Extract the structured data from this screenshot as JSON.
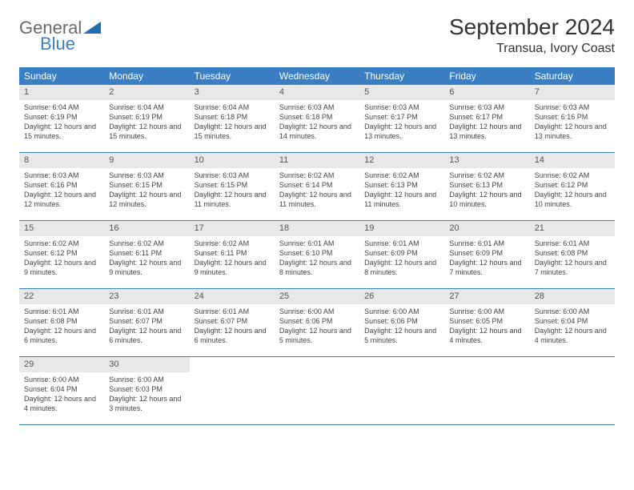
{
  "logo": {
    "text1": "General",
    "text2": "Blue",
    "accent_color": "#1f6fb2"
  },
  "header": {
    "title": "September 2024",
    "location": "Transua, Ivory Coast"
  },
  "style": {
    "header_bg": "#3a7fc4",
    "header_fg": "#ffffff",
    "daynum_bg": "#e8e8e8",
    "border_color": "#3a7fc4",
    "body_fontsize": 9,
    "title_fontsize": 28,
    "location_fontsize": 16
  },
  "day_names": [
    "Sunday",
    "Monday",
    "Tuesday",
    "Wednesday",
    "Thursday",
    "Friday",
    "Saturday"
  ],
  "weeks": [
    [
      {
        "n": "1",
        "sunrise": "6:04 AM",
        "sunset": "6:19 PM",
        "daylight": "12 hours and 15 minutes."
      },
      {
        "n": "2",
        "sunrise": "6:04 AM",
        "sunset": "6:19 PM",
        "daylight": "12 hours and 15 minutes."
      },
      {
        "n": "3",
        "sunrise": "6:04 AM",
        "sunset": "6:18 PM",
        "daylight": "12 hours and 15 minutes."
      },
      {
        "n": "4",
        "sunrise": "6:03 AM",
        "sunset": "6:18 PM",
        "daylight": "12 hours and 14 minutes."
      },
      {
        "n": "5",
        "sunrise": "6:03 AM",
        "sunset": "6:17 PM",
        "daylight": "12 hours and 13 minutes."
      },
      {
        "n": "6",
        "sunrise": "6:03 AM",
        "sunset": "6:17 PM",
        "daylight": "12 hours and 13 minutes."
      },
      {
        "n": "7",
        "sunrise": "6:03 AM",
        "sunset": "6:16 PM",
        "daylight": "12 hours and 13 minutes."
      }
    ],
    [
      {
        "n": "8",
        "sunrise": "6:03 AM",
        "sunset": "6:16 PM",
        "daylight": "12 hours and 12 minutes."
      },
      {
        "n": "9",
        "sunrise": "6:03 AM",
        "sunset": "6:15 PM",
        "daylight": "12 hours and 12 minutes."
      },
      {
        "n": "10",
        "sunrise": "6:03 AM",
        "sunset": "6:15 PM",
        "daylight": "12 hours and 11 minutes."
      },
      {
        "n": "11",
        "sunrise": "6:02 AM",
        "sunset": "6:14 PM",
        "daylight": "12 hours and 11 minutes."
      },
      {
        "n": "12",
        "sunrise": "6:02 AM",
        "sunset": "6:13 PM",
        "daylight": "12 hours and 11 minutes."
      },
      {
        "n": "13",
        "sunrise": "6:02 AM",
        "sunset": "6:13 PM",
        "daylight": "12 hours and 10 minutes."
      },
      {
        "n": "14",
        "sunrise": "6:02 AM",
        "sunset": "6:12 PM",
        "daylight": "12 hours and 10 minutes."
      }
    ],
    [
      {
        "n": "15",
        "sunrise": "6:02 AM",
        "sunset": "6:12 PM",
        "daylight": "12 hours and 9 minutes."
      },
      {
        "n": "16",
        "sunrise": "6:02 AM",
        "sunset": "6:11 PM",
        "daylight": "12 hours and 9 minutes."
      },
      {
        "n": "17",
        "sunrise": "6:02 AM",
        "sunset": "6:11 PM",
        "daylight": "12 hours and 9 minutes."
      },
      {
        "n": "18",
        "sunrise": "6:01 AM",
        "sunset": "6:10 PM",
        "daylight": "12 hours and 8 minutes."
      },
      {
        "n": "19",
        "sunrise": "6:01 AM",
        "sunset": "6:09 PM",
        "daylight": "12 hours and 8 minutes."
      },
      {
        "n": "20",
        "sunrise": "6:01 AM",
        "sunset": "6:09 PM",
        "daylight": "12 hours and 7 minutes."
      },
      {
        "n": "21",
        "sunrise": "6:01 AM",
        "sunset": "6:08 PM",
        "daylight": "12 hours and 7 minutes."
      }
    ],
    [
      {
        "n": "22",
        "sunrise": "6:01 AM",
        "sunset": "6:08 PM",
        "daylight": "12 hours and 6 minutes."
      },
      {
        "n": "23",
        "sunrise": "6:01 AM",
        "sunset": "6:07 PM",
        "daylight": "12 hours and 6 minutes."
      },
      {
        "n": "24",
        "sunrise": "6:01 AM",
        "sunset": "6:07 PM",
        "daylight": "12 hours and 6 minutes."
      },
      {
        "n": "25",
        "sunrise": "6:00 AM",
        "sunset": "6:06 PM",
        "daylight": "12 hours and 5 minutes."
      },
      {
        "n": "26",
        "sunrise": "6:00 AM",
        "sunset": "6:06 PM",
        "daylight": "12 hours and 5 minutes."
      },
      {
        "n": "27",
        "sunrise": "6:00 AM",
        "sunset": "6:05 PM",
        "daylight": "12 hours and 4 minutes."
      },
      {
        "n": "28",
        "sunrise": "6:00 AM",
        "sunset": "6:04 PM",
        "daylight": "12 hours and 4 minutes."
      }
    ],
    [
      {
        "n": "29",
        "sunrise": "6:00 AM",
        "sunset": "6:04 PM",
        "daylight": "12 hours and 4 minutes."
      },
      {
        "n": "30",
        "sunrise": "6:00 AM",
        "sunset": "6:03 PM",
        "daylight": "12 hours and 3 minutes."
      },
      null,
      null,
      null,
      null,
      null
    ]
  ],
  "labels": {
    "sunrise": "Sunrise:",
    "sunset": "Sunset:",
    "daylight": "Daylight:"
  }
}
